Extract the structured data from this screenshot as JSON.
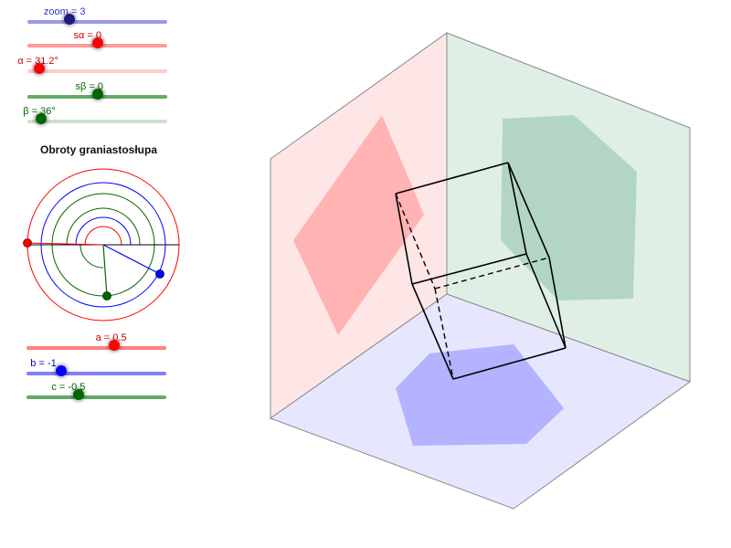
{
  "top_sliders": [
    {
      "id": "zoom",
      "label": "zoom = 3",
      "value": 3,
      "min": 0,
      "max": 10,
      "color": "#3333cc",
      "track": "#9999e6",
      "knob": "#1a1a80"
    },
    {
      "id": "s_alpha",
      "label": "sα = 0",
      "value": 0,
      "min": -1,
      "max": 1,
      "color": "#cc0000",
      "track": "#ff9999",
      "knob": "#ff0000"
    },
    {
      "id": "alpha",
      "label": "α = 31.2°",
      "value": 31.2,
      "min": 0,
      "max": 360,
      "color": "#cc0000",
      "track": "#ffcccc",
      "knob": "#ff0000"
    },
    {
      "id": "s_beta",
      "label": "sβ = 0",
      "value": 0,
      "min": -1,
      "max": 1,
      "color": "#006600",
      "track": "#66aa66",
      "knob": "#006600"
    },
    {
      "id": "beta",
      "label": "β = 36°",
      "value": 36,
      "min": 0,
      "max": 360,
      "color": "#006600",
      "track": "#cce0cc",
      "knob": "#006600"
    }
  ],
  "title": "Obroty graniastosłupa",
  "bottom_sliders": [
    {
      "id": "a",
      "label": "a = 0.5",
      "value": 0.5,
      "min": -2,
      "max": 2,
      "color": "#cc0000",
      "track": "#ff8080",
      "knob": "#ff0000"
    },
    {
      "id": "b",
      "label": "b = -1",
      "value": -1,
      "min": -2,
      "max": 2,
      "color": "#0000cc",
      "track": "#8080ff",
      "knob": "#0000ff"
    },
    {
      "id": "c",
      "label": "c = -0.5",
      "value": -0.5,
      "min": -2,
      "max": 2,
      "color": "#006600",
      "track": "#66aa66",
      "knob": "#006600"
    }
  ],
  "colors": {
    "red_plane": "#ffe6e6",
    "red_shadow": "#ffb3b3",
    "green_plane": "#e0efe6",
    "green_shadow": "#b3d6c4",
    "blue_plane": "#e6e6ff",
    "blue_shadow": "#b3b3ff"
  }
}
